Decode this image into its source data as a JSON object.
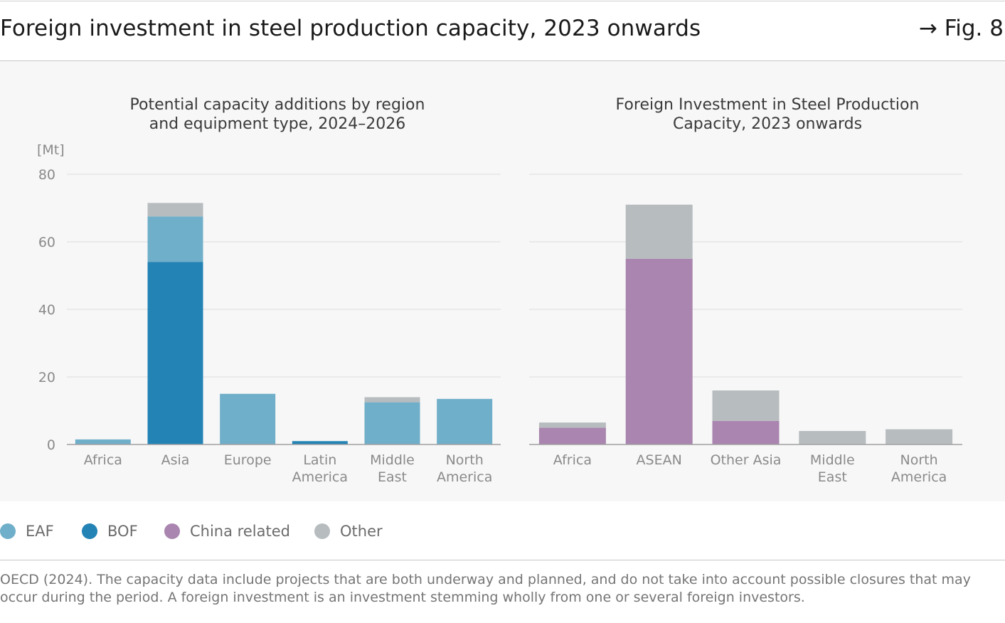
{
  "header": {
    "title": "Foreign investment in steel production capacity, 2023 onwards",
    "fig_ref": "→ Fig. 8"
  },
  "colors": {
    "EAF": "#70afc9",
    "BOF": "#2383b5",
    "China related": "#a985af",
    "Other": "#b7bcbf",
    "grid": "#e6e6e6",
    "axis": "#a0a0a0",
    "tick_text": "#8a8a8a"
  },
  "chart_data": [
    {
      "type": "bar",
      "stacked": true,
      "title_lines": [
        "Potential capacity additions by region",
        "and equipment type, 2024–2026"
      ],
      "unit_label": "[Mt]",
      "ylim": [
        0,
        80
      ],
      "yticks": [
        0,
        20,
        40,
        60,
        80
      ],
      "categories": [
        [
          "Africa"
        ],
        [
          "Asia"
        ],
        [
          "Europe"
        ],
        [
          "Latin",
          "America"
        ],
        [
          "Middle",
          "East"
        ],
        [
          "North",
          "America"
        ]
      ],
      "series": [
        {
          "name": "BOF",
          "values": [
            0,
            54,
            0,
            1,
            0,
            0
          ]
        },
        {
          "name": "EAF",
          "values": [
            1.5,
            13.5,
            15,
            0,
            12.5,
            13.5
          ]
        },
        {
          "name": "Other",
          "values": [
            0,
            4,
            0,
            0,
            1.5,
            0
          ]
        }
      ]
    },
    {
      "type": "bar",
      "stacked": true,
      "title_lines": [
        "Foreign Investment in Steel Production",
        "Capacity, 2023 onwards"
      ],
      "ylim": [
        0,
        80
      ],
      "yticks": [
        0,
        20,
        40,
        60,
        80
      ],
      "categories": [
        [
          "Africa"
        ],
        [
          "ASEAN"
        ],
        [
          "Other Asia"
        ],
        [
          "Middle",
          "East"
        ],
        [
          "North",
          "America"
        ]
      ],
      "series": [
        {
          "name": "China related",
          "values": [
            5,
            55,
            7,
            0,
            0
          ]
        },
        {
          "name": "Other",
          "values": [
            1.5,
            16,
            9,
            4,
            4.5
          ]
        }
      ]
    }
  ],
  "legend": [
    {
      "label": "EAF",
      "key": "EAF"
    },
    {
      "label": "BOF",
      "key": "BOF"
    },
    {
      "label": "China related",
      "key": "China related"
    },
    {
      "label": "Other",
      "key": "Other"
    }
  ],
  "footnote": "OECD (2024). The capacity data include projects that are both underway and planned, and do not take into account possible closures that may occur during the period. A foreign investment is an investment stemming wholly from one or several foreign investors."
}
